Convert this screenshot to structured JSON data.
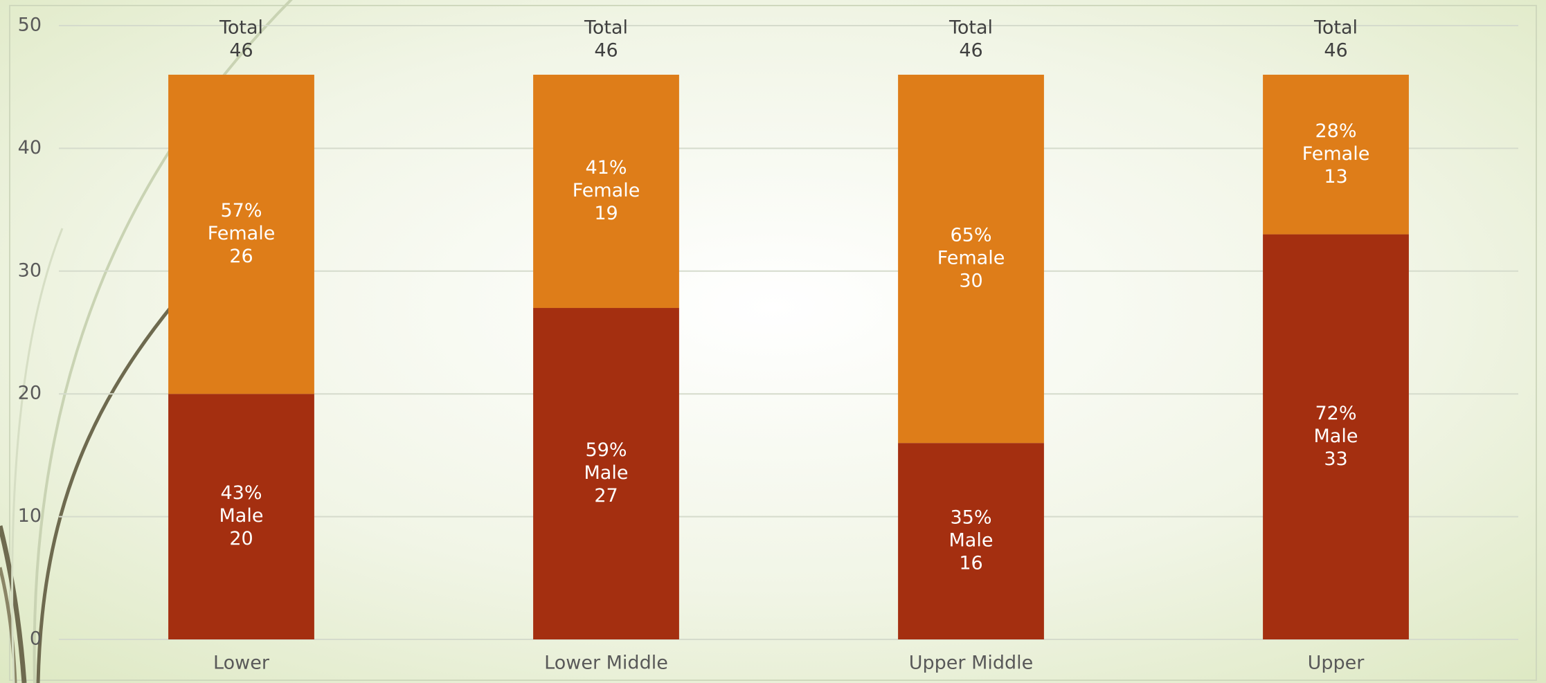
{
  "chart_data": {
    "type": "stacked_bar",
    "categories": [
      "Lower",
      "Lower Middle",
      "Upper Middle",
      "Upper"
    ],
    "series": [
      {
        "name": "Male",
        "color": "#a42f10",
        "values": [
          20,
          27,
          16,
          33
        ],
        "percent_labels": [
          "43%",
          "59%",
          "35%",
          "72%"
        ]
      },
      {
        "name": "Female",
        "color": "#de7d19",
        "values": [
          26,
          19,
          30,
          13
        ],
        "percent_labels": [
          "57%",
          "41%",
          "65%",
          "28%"
        ]
      }
    ],
    "totals": {
      "label": "Total",
      "values": [
        46,
        46,
        46,
        46
      ]
    },
    "ylim": [
      0,
      50
    ],
    "yticks": [
      0,
      10,
      20,
      30,
      40,
      50
    ],
    "grid": true
  }
}
